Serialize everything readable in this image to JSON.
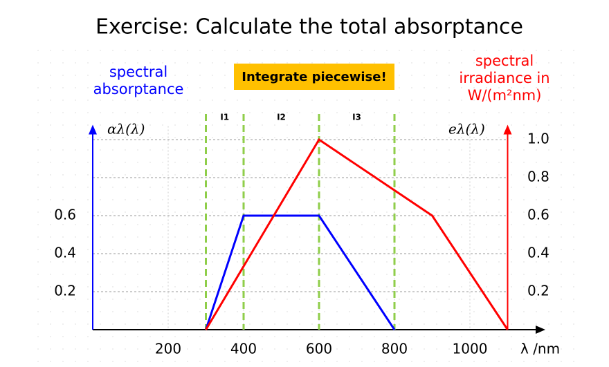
{
  "chart_data": {
    "type": "line",
    "title": "Exercise: Calculate the total absorptance",
    "annotation": "Integrate piecewise!",
    "x_label": "λ /nm",
    "xlim": [
      0,
      1200
    ],
    "xticks": [
      200,
      400,
      600,
      800,
      1000
    ],
    "ylim": [
      0,
      1.1
    ],
    "yticks": [
      0.2,
      0.4,
      0.6
    ],
    "y2lim": [
      0,
      1.1
    ],
    "y2ticks": [
      0.2,
      0.4,
      0.6,
      0.8,
      {
        "value": 1,
        "label": "1.0"
      }
    ],
    "grid": true,
    "boundaries": [
      300,
      400,
      600,
      800
    ],
    "intervals": [
      "I1",
      "I2",
      "I3"
    ],
    "series": [
      {
        "name": "spectral absorptance",
        "symbol": "αλ(λ)",
        "color": "#0000ff",
        "x": [
          300,
          400,
          600,
          800
        ],
        "values": [
          0,
          0.6,
          0.6,
          0
        ]
      },
      {
        "name": "spectral irradiance in W/(m²nm)",
        "symbol": "eλ(λ)",
        "color": "#ff0000",
        "axis": "y2",
        "x": [
          300,
          600,
          900,
          1100
        ],
        "values": [
          0,
          1,
          0.6,
          0
        ]
      }
    ]
  }
}
